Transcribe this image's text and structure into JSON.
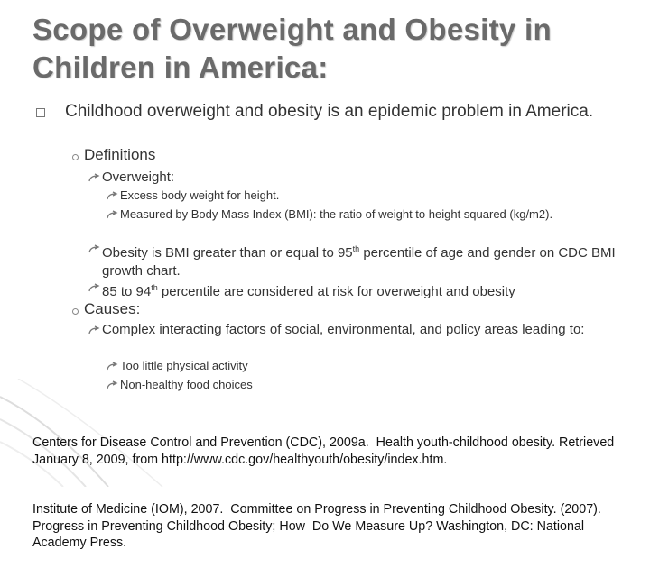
{
  "title": {
    "line1": "Scope of Overweight and Obesity in",
    "line2": "Children in America:"
  },
  "bullet": {
    "text": "Childhood overweight and obesity is an epidemic problem in America.",
    "definitions": {
      "heading": "Definitions",
      "overweight": {
        "heading": "Overweight:",
        "items": [
          "Excess body weight for height.",
          "Measured by Body Mass Index (BMI):  the ratio of weight to height squared (kg/m2)."
        ]
      },
      "obesity": {
        "before": "Obesity is BMI greater than or equal to 95",
        "sup": "th",
        "after": " percentile of age and gender on CDC BMI growth chart."
      },
      "at_risk": {
        "before": "85 to 94",
        "sup": "th",
        "after": " percentile are considered at risk for overweight and obesity"
      }
    },
    "causes": {
      "heading": "Causes:",
      "complex": {
        "text": "Complex interacting factors of social, environmental, and policy areas leading to:",
        "items": [
          "Too little physical activity",
          "Non-healthy food choices"
        ]
      }
    }
  },
  "references": [
    "Centers for Disease Control and Prevention (CDC), 2009a.  Health youth-childhood obesity. Retrieved January 8, 2009, from http://www.cdc.gov/healthyouth/obesity/index.htm.",
    "Institute of Medicine (IOM), 2007.  Committee on Progress in Preventing Childhood Obesity. (2007). Progress in Preventing Childhood Obesity; How  Do We Measure Up? Washington, DC: National Academy Press."
  ]
}
